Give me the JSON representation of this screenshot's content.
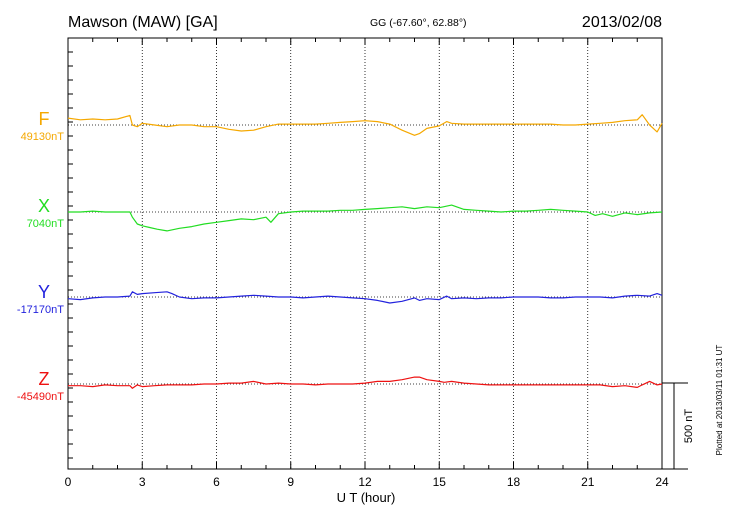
{
  "chart_data": {
    "type": "line",
    "title": {
      "station": "Mawson (MAW)  [GA]",
      "coords": "GG (-67.60°,  62.88°)",
      "date": "2013/02/08"
    },
    "xlabel": "U T (hour)",
    "xlim": [
      0,
      24
    ],
    "xticks": [
      0,
      3,
      6,
      9,
      12,
      15,
      18,
      21,
      24
    ],
    "grid": true,
    "scale_bar_label": "500 nT",
    "plotted_note": "Plotted at 2013/03/11 01:31 UT",
    "series": [
      {
        "name": "F",
        "baseline_label": "49130nT",
        "color": "#f5a800",
        "x": [
          0,
          0.5,
          1,
          1.5,
          2,
          2.5,
          2.6,
          2.8,
          3,
          3.5,
          4,
          4.5,
          5,
          5.5,
          6,
          6.5,
          7,
          7.5,
          8,
          8.5,
          9,
          9.5,
          10,
          10.5,
          11,
          11.5,
          12,
          12.5,
          13,
          13.5,
          14,
          14.2,
          14.5,
          15,
          15.3,
          15.5,
          16,
          16.5,
          17,
          17.5,
          18,
          18.5,
          19,
          19.5,
          20,
          20.5,
          21,
          21.5,
          22,
          22.5,
          23,
          23.2,
          23.5,
          23.8,
          24
        ],
        "values": [
          40,
          30,
          35,
          30,
          35,
          55,
          0,
          -10,
          10,
          0,
          -10,
          0,
          0,
          -10,
          -10,
          -25,
          -35,
          -30,
          -10,
          5,
          5,
          5,
          5,
          10,
          15,
          20,
          25,
          20,
          5,
          -30,
          -60,
          -50,
          -20,
          -5,
          20,
          10,
          5,
          5,
          5,
          5,
          5,
          5,
          5,
          5,
          0,
          0,
          5,
          10,
          15,
          25,
          30,
          60,
          0,
          -40,
          10
        ]
      },
      {
        "name": "X",
        "baseline_label": "7040nT",
        "color": "#22dd22",
        "x": [
          0,
          0.5,
          1,
          1.5,
          2,
          2.5,
          2.6,
          2.8,
          3,
          3.3,
          3.6,
          4,
          4.5,
          5,
          5.5,
          6,
          6.5,
          7,
          7.5,
          8,
          8.2,
          8.5,
          9,
          9.5,
          10,
          10.5,
          11,
          11.5,
          12,
          12.5,
          13,
          13.5,
          14,
          14.5,
          15,
          15.5,
          16,
          16.5,
          17,
          17.5,
          18,
          18.5,
          19,
          19.5,
          20,
          20.5,
          21,
          21.3,
          21.6,
          22,
          22.5,
          23,
          23.5,
          24
        ],
        "values": [
          0,
          0,
          5,
          0,
          0,
          0,
          -30,
          -70,
          -80,
          -90,
          -100,
          -110,
          -95,
          -85,
          -70,
          -60,
          -50,
          -40,
          -45,
          -30,
          -60,
          -10,
          0,
          5,
          5,
          5,
          10,
          10,
          15,
          20,
          25,
          30,
          20,
          30,
          25,
          40,
          15,
          10,
          5,
          0,
          5,
          5,
          10,
          15,
          10,
          5,
          0,
          -20,
          -10,
          -25,
          -5,
          -15,
          -5,
          0
        ]
      },
      {
        "name": "Y",
        "baseline_label": "-17170nT",
        "color": "#2222dd",
        "x": [
          0,
          0.5,
          1,
          1.5,
          2,
          2.5,
          2.6,
          2.8,
          3,
          3.5,
          4,
          4.2,
          4.5,
          5,
          5.5,
          6,
          6.5,
          7,
          7.5,
          8,
          8.5,
          9,
          9.5,
          10,
          10.5,
          11,
          11.5,
          12,
          12.5,
          13,
          13.5,
          14,
          14.2,
          14.5,
          15,
          15.3,
          15.5,
          16,
          16.5,
          17,
          17.5,
          18,
          18.5,
          19,
          19.5,
          20,
          20.5,
          21,
          21.5,
          22,
          22.5,
          23,
          23.5,
          23.8,
          24
        ],
        "values": [
          -10,
          -15,
          -5,
          0,
          0,
          5,
          30,
          15,
          20,
          25,
          30,
          20,
          0,
          -10,
          -5,
          -5,
          0,
          5,
          10,
          5,
          0,
          0,
          -5,
          0,
          5,
          0,
          -5,
          -10,
          -20,
          -35,
          -25,
          -5,
          -20,
          -10,
          -15,
          5,
          -10,
          -5,
          -10,
          -5,
          -5,
          0,
          0,
          0,
          -5,
          -5,
          0,
          0,
          0,
          -5,
          5,
          10,
          5,
          20,
          10
        ]
      },
      {
        "name": "Z",
        "baseline_label": "-45490nT",
        "color": "#ee1111",
        "x": [
          0,
          0.5,
          1,
          1.5,
          2,
          2.5,
          2.6,
          2.8,
          3,
          3.5,
          4,
          4.5,
          5,
          5.5,
          6,
          6.5,
          7,
          7.5,
          8,
          8.5,
          9,
          9.5,
          10,
          10.5,
          11,
          11.5,
          12,
          12.5,
          13,
          13.5,
          14,
          14.2,
          14.5,
          15,
          15.2,
          15.5,
          16,
          16.5,
          17,
          17.5,
          18,
          18.5,
          19,
          19.5,
          20,
          20.5,
          21,
          21.5,
          22,
          22.5,
          23,
          23.2,
          23.5,
          23.8,
          24
        ],
        "values": [
          -10,
          -10,
          -15,
          -5,
          -10,
          -10,
          -25,
          -5,
          -15,
          -10,
          -5,
          -5,
          -5,
          0,
          0,
          5,
          5,
          15,
          0,
          5,
          0,
          0,
          -5,
          0,
          0,
          0,
          5,
          15,
          15,
          25,
          40,
          40,
          25,
          15,
          10,
          15,
          5,
          0,
          -5,
          -5,
          -5,
          -5,
          -5,
          -5,
          -5,
          -5,
          -5,
          -5,
          -15,
          -10,
          -20,
          -5,
          15,
          -5,
          0
        ]
      }
    ]
  }
}
